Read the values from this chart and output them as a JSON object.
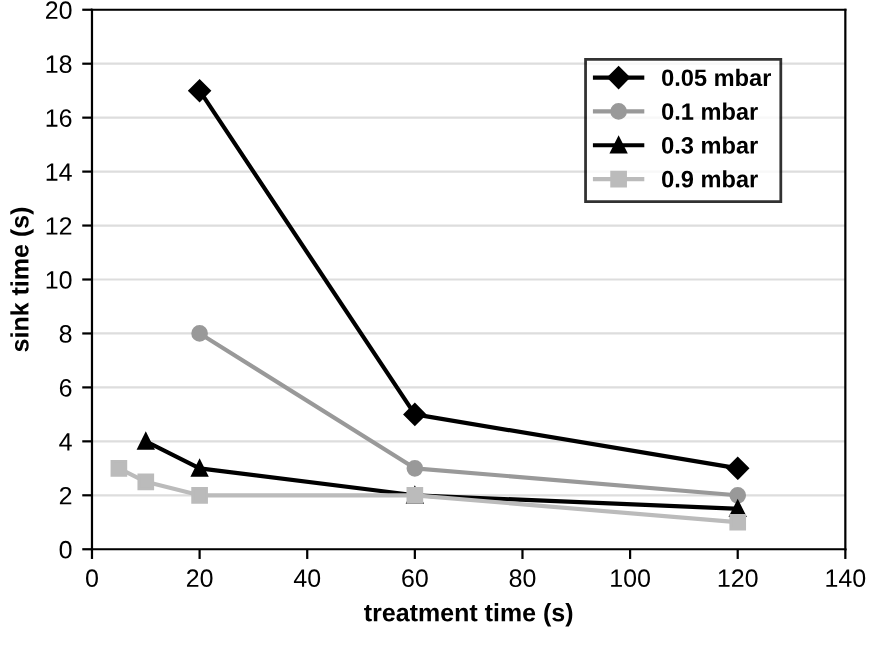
{
  "chart_data": {
    "type": "line",
    "xlabel": "treatment time (s)",
    "ylabel": "sink time (s)",
    "xlim": [
      0,
      140
    ],
    "xticks": [
      0,
      20,
      40,
      60,
      80,
      100,
      120,
      140
    ],
    "ylim": [
      0,
      20
    ],
    "yticks": [
      0,
      2,
      4,
      6,
      8,
      10,
      12,
      14,
      16,
      18,
      20
    ],
    "grid": "y",
    "legend": "top right",
    "line_style": "solid",
    "series": [
      {
        "name": "0.05 mbar",
        "color": "#000000",
        "marker": "diamond",
        "x": [
          20,
          60,
          120
        ],
        "values": [
          17,
          5,
          3
        ]
      },
      {
        "name": "0.1 mbar",
        "color": "#999999",
        "marker": "circle",
        "x": [
          20,
          60,
          120
        ],
        "values": [
          8,
          3,
          2
        ]
      },
      {
        "name": "0.3 mbar",
        "color": "#000000",
        "marker": "triangle",
        "x": [
          10,
          20,
          60,
          120
        ],
        "values": [
          4,
          3,
          2,
          1.5
        ]
      },
      {
        "name": "0.9 mbar",
        "color": "#bbbbbb",
        "marker": "square",
        "x": [
          5,
          10,
          20,
          60,
          120
        ],
        "values": [
          3,
          2.5,
          2,
          2,
          1
        ]
      }
    ]
  }
}
